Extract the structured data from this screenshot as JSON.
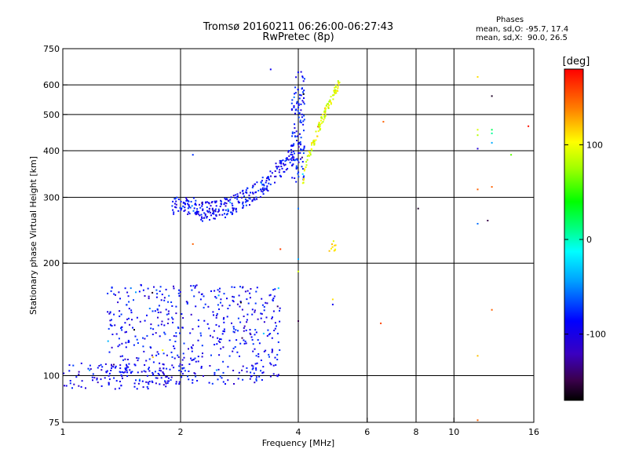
{
  "chart_data": {
    "type": "scatter",
    "title": "Tromsø 20160211 06:26:00-06:27:43",
    "subtitle": "RwPretec (8p)",
    "stats_heading": "Phases",
    "stats_o": "mean, sd,O: -95.7, 17.4",
    "stats_x": "mean, sd,X:  90.0, 26.5",
    "xlabel": "Frequency [MHz]",
    "ylabel": "Stationary phase Virtual Height [km]",
    "x_scale": "log",
    "y_scale": "log",
    "xlim": [
      1,
      16
    ],
    "ylim": [
      75,
      750
    ],
    "x_ticks": [
      1,
      2,
      4,
      6,
      8,
      10,
      16
    ],
    "x_tick_labels": [
      "1",
      "2",
      "4",
      "6",
      "8",
      "10",
      "16"
    ],
    "y_ticks": [
      75,
      100,
      200,
      300,
      400,
      500,
      600,
      750
    ],
    "y_tick_labels": [
      "75",
      "100",
      "200",
      "300",
      "400",
      "500",
      "600",
      "750"
    ],
    "x_grid": [
      2,
      4,
      6,
      8,
      10
    ],
    "y_grid": [
      100,
      200,
      300,
      400,
      500,
      600
    ],
    "colorbar": {
      "label": "[deg]",
      "min": -170,
      "max": 180,
      "ticks": [
        100,
        0,
        -100
      ],
      "tick_labels": [
        "100",
        "0",
        "-100"
      ]
    },
    "clusters": [
      {
        "name": "E-region trace",
        "fmin": 1.0,
        "fmax": 2.05,
        "hmin": 92,
        "hmax": 108,
        "n": 120,
        "phase": -100
      },
      {
        "name": "E-region cloud",
        "fmin": 1.3,
        "fmax": 3.6,
        "hmin": 95,
        "hmax": 175,
        "n": 520,
        "phase": -95
      },
      {
        "name": "F-region trace low",
        "fmin": 1.9,
        "fmax": 2.2,
        "hmin": 270,
        "hmax": 300,
        "n": 60,
        "phase": -95
      },
      {
        "name": "F-region trace curve",
        "fmin": 2.2,
        "fmax": 3.9,
        "hmin": 275,
        "hmax": 400,
        "n": 260,
        "phase": -95
      },
      {
        "name": "F-region trace vertical",
        "fmin": 3.85,
        "fmax": 4.15,
        "hmin": 330,
        "hmax": 650,
        "n": 120,
        "phase": -90
      },
      {
        "name": "X-mode trace",
        "fmin": 4.1,
        "fmax": 5.1,
        "hmin": 320,
        "hmax": 610,
        "n": 110,
        "phase": 95
      },
      {
        "name": "X-mode spot",
        "fmin": 4.8,
        "fmax": 5.0,
        "hmin": 215,
        "hmax": 230,
        "n": 10,
        "phase": 110
      }
    ],
    "isolated_points": [
      {
        "f": 3.4,
        "h": 660,
        "phase": -100
      },
      {
        "f": 2.15,
        "h": 390,
        "phase": -80
      },
      {
        "f": 2.15,
        "h": 225,
        "phase": 150
      },
      {
        "f": 3.6,
        "h": 218,
        "phase": 160
      },
      {
        "f": 4.0,
        "h": 280,
        "phase": -60
      },
      {
        "f": 4.0,
        "h": 205,
        "phase": -40
      },
      {
        "f": 4.0,
        "h": 190,
        "phase": 90
      },
      {
        "f": 4.0,
        "h": 140,
        "phase": -150
      },
      {
        "f": 4.9,
        "h": 160,
        "phase": 110
      },
      {
        "f": 4.9,
        "h": 155,
        "phase": -100
      },
      {
        "f": 6.6,
        "h": 478,
        "phase": 150
      },
      {
        "f": 6.5,
        "h": 138,
        "phase": 160
      },
      {
        "f": 8.1,
        "h": 280,
        "phase": -160
      },
      {
        "f": 11.5,
        "h": 630,
        "phase": 110
      },
      {
        "f": 11.5,
        "h": 455,
        "phase": 90
      },
      {
        "f": 11.5,
        "h": 440,
        "phase": 80
      },
      {
        "f": 11.5,
        "h": 405,
        "phase": -110
      },
      {
        "f": 11.5,
        "h": 315,
        "phase": 150
      },
      {
        "f": 11.5,
        "h": 255,
        "phase": -60
      },
      {
        "f": 11.5,
        "h": 113,
        "phase": 120
      },
      {
        "f": 11.5,
        "h": 76,
        "phase": 150
      },
      {
        "f": 12.5,
        "h": 560,
        "phase": -160
      },
      {
        "f": 12.5,
        "h": 455,
        "phase": 30
      },
      {
        "f": 12.5,
        "h": 445,
        "phase": 20
      },
      {
        "f": 12.5,
        "h": 420,
        "phase": -40
      },
      {
        "f": 12.5,
        "h": 320,
        "phase": 150
      },
      {
        "f": 12.5,
        "h": 150,
        "phase": 150
      },
      {
        "f": 12.2,
        "h": 260,
        "phase": -150
      },
      {
        "f": 14.0,
        "h": 390,
        "phase": 60
      },
      {
        "f": 15.5,
        "h": 465,
        "phase": 175
      },
      {
        "f": 2.8,
        "h": 74,
        "phase": 150
      },
      {
        "f": 1.7,
        "h": 112,
        "phase": 120
      },
      {
        "f": 1.8,
        "h": 117,
        "phase": 100
      }
    ]
  }
}
